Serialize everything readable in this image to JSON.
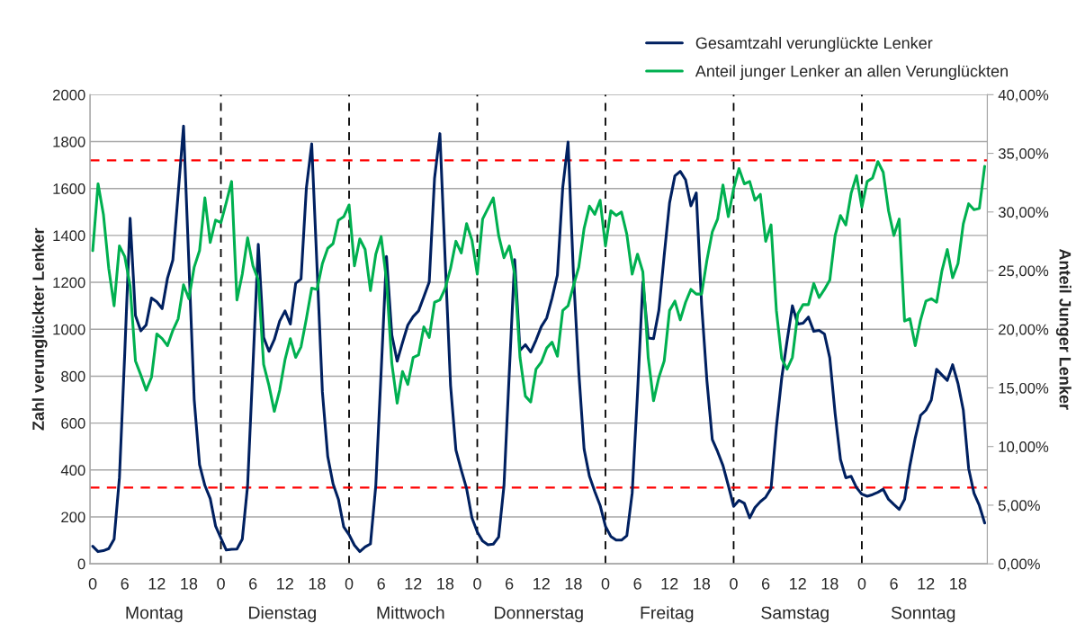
{
  "chart_data": {
    "type": "line",
    "categories": [
      "0",
      null,
      null,
      null,
      null,
      null,
      "6",
      null,
      null,
      null,
      null,
      null,
      "12",
      null,
      null,
      null,
      null,
      null,
      "18",
      null,
      null,
      null,
      null,
      null,
      "0",
      null,
      null,
      null,
      null,
      null,
      "6",
      null,
      null,
      null,
      null,
      null,
      "12",
      null,
      null,
      null,
      null,
      null,
      "18",
      null,
      null,
      null,
      null,
      null,
      "0",
      null,
      null,
      null,
      null,
      null,
      "6",
      null,
      null,
      null,
      null,
      null,
      "12",
      null,
      null,
      null,
      null,
      null,
      "18",
      null,
      null,
      null,
      null,
      null,
      "0",
      null,
      null,
      null,
      null,
      null,
      "6",
      null,
      null,
      null,
      null,
      null,
      "12",
      null,
      null,
      null,
      null,
      null,
      "18",
      null,
      null,
      null,
      null,
      null,
      "0",
      null,
      null,
      null,
      null,
      null,
      "6",
      null,
      null,
      null,
      null,
      null,
      "12",
      null,
      null,
      null,
      null,
      null,
      "18",
      null,
      null,
      null,
      null,
      null,
      "0",
      null,
      null,
      null,
      null,
      null,
      "6",
      null,
      null,
      null,
      null,
      null,
      "12",
      null,
      null,
      null,
      null,
      null,
      "18",
      null,
      null,
      null,
      null,
      null,
      "0",
      null,
      null,
      null,
      null,
      null,
      "6",
      null,
      null,
      null,
      null,
      null,
      "12",
      null,
      null,
      null,
      null,
      null,
      "18",
      null,
      null,
      null,
      null,
      null
    ],
    "series": [
      {
        "name": "Gesamtzahl verunglückte Lenker",
        "color": "#002060",
        "axis": "y",
        "values": [
          75,
          52,
          56,
          65,
          105,
          367,
          900,
          1473,
          1058,
          993,
          1018,
          1133,
          1117,
          1088,
          1218,
          1295,
          1580,
          1866,
          1283,
          700,
          423,
          334,
          278,
          161,
          109,
          59,
          62,
          63,
          105,
          334,
          845,
          1362,
          965,
          906,
          956,
          1035,
          1078,
          1022,
          1196,
          1214,
          1602,
          1790,
          1264,
          733,
          458,
          341,
          275,
          157,
          124,
          79,
          52,
          72,
          85,
          334,
          818,
          1310,
          976,
          864,
          943,
          1018,
          1054,
          1078,
          1139,
          1201,
          1644,
          1834,
          1290,
          760,
          485,
          400,
          321,
          196,
          136,
          97,
          81,
          84,
          114,
          333,
          819,
          1297,
          910,
          934,
          903,
          954,
          1012,
          1048,
          1133,
          1231,
          1604,
          1798,
          1238,
          819,
          489,
          373,
          308,
          249,
          160,
          117,
          101,
          101,
          120,
          301,
          727,
          1201,
          963,
          960,
          1081,
          1316,
          1539,
          1654,
          1673,
          1637,
          1526,
          1581,
          1107,
          779,
          530,
          478,
          419,
          334,
          245,
          271,
          258,
          196,
          240,
          265,
          284,
          321,
          583,
          792,
          950,
          1100,
          1022,
          1026,
          1052,
          991,
          995,
          980,
          878,
          640,
          445,
          367,
          373,
          325,
          297,
          288,
          295,
          305,
          318,
          275,
          253,
          232,
          275,
          419,
          537,
          633,
          655,
          698,
          829,
          805,
          782,
          849,
          769,
          655,
          406,
          301,
          249,
          174
        ]
      },
      {
        "name": "Anteil junger Lenker an allen Verunglückten",
        "color": "#00b050",
        "axis": "y2",
        "values": [
          26.7,
          32.4,
          29.8,
          25.2,
          22.0,
          27.1,
          26.2,
          23.7,
          17.3,
          16.1,
          14.8,
          15.9,
          19.6,
          19.2,
          18.6,
          19.9,
          20.9,
          23.8,
          22.6,
          25.3,
          26.7,
          31.2,
          27.4,
          29.3,
          29.1,
          30.8,
          32.6,
          22.5,
          24.7,
          27.8,
          25.4,
          24.2,
          17.0,
          15.2,
          13.0,
          14.8,
          17.4,
          19.2,
          17.6,
          18.5,
          20.9,
          23.5,
          23.4,
          25.6,
          26.9,
          27.3,
          29.3,
          29.6,
          30.6,
          25.4,
          27.7,
          26.8,
          23.3,
          26.4,
          27.9,
          24.2,
          17.1,
          13.7,
          16.4,
          15.3,
          17.6,
          17.8,
          20.2,
          19.3,
          22.3,
          22.5,
          23.5,
          25.2,
          27.5,
          26.5,
          29.0,
          27.6,
          24.7,
          29.4,
          30.3,
          31.2,
          28.0,
          26.1,
          27.1,
          24.7,
          17.6,
          14.3,
          13.8,
          16.6,
          17.2,
          18.4,
          18.9,
          17.7,
          21.6,
          22.0,
          23.7,
          25.3,
          28.6,
          30.5,
          29.8,
          31.0,
          27.1,
          30.1,
          29.7,
          30.0,
          28.1,
          24.7,
          26.4,
          24.9,
          17.6,
          13.9,
          15.9,
          17.3,
          21.6,
          22.4,
          20.8,
          22.3,
          23.4,
          23.0,
          23.0,
          25.9,
          28.3,
          29.4,
          32.3,
          29.6,
          32.0,
          33.7,
          32.4,
          32.6,
          31.0,
          31.5,
          27.5,
          28.9,
          21.6,
          17.5,
          16.6,
          17.6,
          21.3,
          22.1,
          22.1,
          23.9,
          22.7,
          23.4,
          24.2,
          28.0,
          29.7,
          28.9,
          31.6,
          33.1,
          30.4,
          32.6,
          32.9,
          34.3,
          33.4,
          30.1,
          28.0,
          29.4,
          20.7,
          20.9,
          18.6,
          20.8,
          22.4,
          22.6,
          22.3,
          25.0,
          26.8,
          24.4,
          25.6,
          29.0,
          30.7,
          30.2,
          30.3,
          33.9
        ]
      }
    ],
    "ylabel": "Zahl verunglückter Lenker",
    "y2label": "Anteil Junger Lenker",
    "ylim": [
      0,
      2000
    ],
    "yticks": [
      0,
      200,
      400,
      600,
      800,
      1000,
      1200,
      1400,
      1600,
      1800,
      2000
    ],
    "y2lim": [
      0,
      40
    ],
    "y2ticks": [
      {
        "value": 0,
        "label": "0,00%"
      },
      {
        "value": 5,
        "label": "5,00%"
      },
      {
        "value": 10,
        "label": "10,00%"
      },
      {
        "value": 15,
        "label": "15,00%"
      },
      {
        "value": 20,
        "label": "20,00%"
      },
      {
        "value": 25,
        "label": "25,00%"
      },
      {
        "value": 30,
        "label": "30,00%"
      },
      {
        "value": 35,
        "label": "35,00%"
      },
      {
        "value": 40,
        "label": "40,00%"
      }
    ],
    "ref_lines": [
      {
        "axis": "y",
        "value": 1720,
        "color": "#ff0000",
        "line_style": "dashed"
      },
      {
        "axis": "y",
        "value": 325,
        "color": "#ff0000",
        "line_style": "dashed"
      }
    ],
    "annotations": [
      "Montag",
      "Dienstag",
      "Mittwoch",
      "Donnerstag",
      "Freitag",
      "Samstag",
      "Sonntag"
    ],
    "grid": "y",
    "legend": "top right"
  }
}
